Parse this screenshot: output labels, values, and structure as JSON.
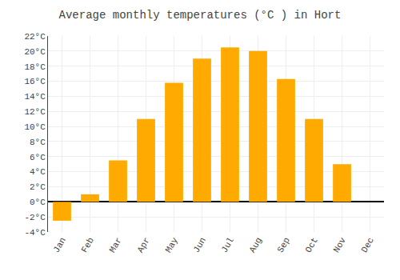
{
  "chart_data": {
    "type": "bar",
    "title": "Average monthly temperatures (°C ) in Hort",
    "categories": [
      "Jan",
      "Feb",
      "Mar",
      "Apr",
      "May",
      "Jun",
      "Jul",
      "Aug",
      "Sep",
      "Oct",
      "Nov",
      "Dec"
    ],
    "values": [
      -2.5,
      1.0,
      5.5,
      11.0,
      15.8,
      19.0,
      20.5,
      20.0,
      16.3,
      11.0,
      5.0,
      0
    ],
    "color": "#FFAA00",
    "ylim": [
      -4,
      22
    ],
    "yticks": [
      {
        "value": -4,
        "label": "-4°C"
      },
      {
        "value": -2,
        "label": "-2°C"
      },
      {
        "value": 0,
        "label": "0°C"
      },
      {
        "value": 2,
        "label": "2°C"
      },
      {
        "value": 4,
        "label": "4°C"
      },
      {
        "value": 6,
        "label": "6°C"
      },
      {
        "value": 8,
        "label": "8°C"
      },
      {
        "value": 10,
        "label": "10°C"
      },
      {
        "value": 12,
        "label": "12°C"
      },
      {
        "value": 14,
        "label": "14°C"
      },
      {
        "value": 16,
        "label": "16°C"
      },
      {
        "value": 18,
        "label": "18°C"
      },
      {
        "value": 20,
        "label": "20°C"
      },
      {
        "value": 22,
        "label": "22°C"
      }
    ],
    "grid": true
  }
}
